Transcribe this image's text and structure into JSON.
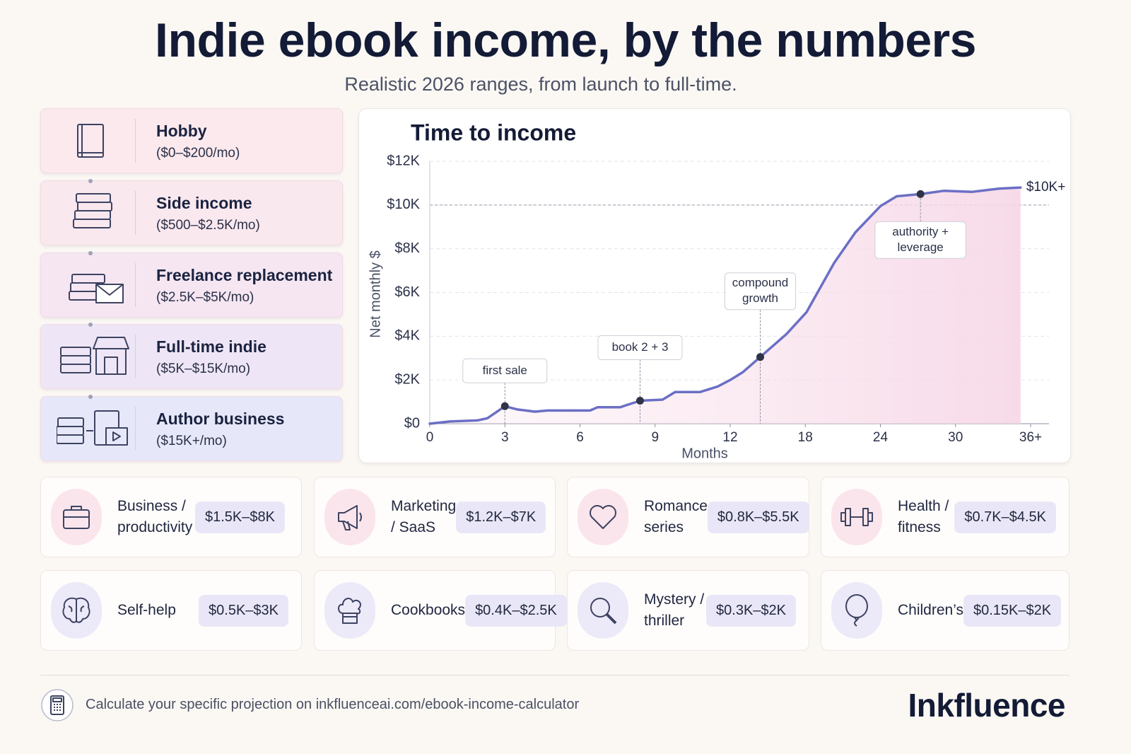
{
  "header": {
    "title": "Indie ebook income, by the numbers",
    "subtitle": "Realistic 2026 ranges, from launch to full-time."
  },
  "tiers": [
    {
      "name": "Hobby",
      "range": "($0–$200/mo)"
    },
    {
      "name": "Side income",
      "range": "($500–$2.5K/mo)"
    },
    {
      "name": "Freelance replacement",
      "range": "($2.5K–$5K/mo)"
    },
    {
      "name": "Full-time indie",
      "range": "($5K–$15K/mo)"
    },
    {
      "name": "Author business",
      "range": "($15K+/mo)"
    }
  ],
  "chart_data": {
    "type": "line",
    "title": "Time to income",
    "x_label": "Months",
    "y_label": "Net monthly $",
    "color": "#6b6fc4",
    "x": [
      0,
      0.8,
      1.9,
      2.3,
      3,
      3.5,
      4.2,
      4.7,
      6.4,
      6.7,
      7.6,
      8.4,
      9.3,
      9.8,
      10.8,
      11.5,
      12,
      13,
      14.4,
      16.5,
      18.1,
      20.3,
      22,
      24,
      25.3,
      27.2,
      29.1,
      31.3,
      33.5,
      35.2
    ],
    "values": [
      0,
      100,
      150,
      250,
      800,
      650,
      550,
      600,
      600,
      750,
      750,
      1050,
      1100,
      1450,
      1450,
      1700,
      2000,
      2350,
      3050,
      4100,
      5100,
      7350,
      8750,
      9950,
      10400,
      10500,
      10650,
      10600,
      10750,
      10800
    ],
    "xlim": [
      0,
      36
    ],
    "xticks": [
      0,
      3,
      6,
      9,
      12,
      18,
      24,
      30,
      {
        "value": 36,
        "label": "36+"
      }
    ],
    "ylim": [
      0,
      12000
    ],
    "yticks": [
      {
        "value": 0,
        "label": "$0"
      },
      {
        "value": 2000,
        "label": "$2K"
      },
      {
        "value": 4000,
        "label": "$4K"
      },
      {
        "value": 6000,
        "label": "$6K"
      },
      {
        "value": 8000,
        "label": "$8K"
      },
      {
        "value": 10000,
        "label": "$10K"
      },
      {
        "value": 12000,
        "label": "$12K"
      }
    ],
    "grid": true,
    "reference_line": 10000,
    "end_label": "$10K+",
    "annotations": [
      {
        "x": 3,
        "y": 800,
        "text": [
          "first sale"
        ]
      },
      {
        "x": 8.4,
        "y": 1050,
        "text": [
          "book 2 + 3"
        ]
      },
      {
        "x": 14.4,
        "y": 3050,
        "text": [
          "compound",
          "growth"
        ]
      },
      {
        "x": 27.2,
        "y": 10500,
        "text": [
          "authority +",
          "leverage"
        ]
      }
    ]
  },
  "niches": [
    {
      "name": "Business / productivity",
      "range": "$1.5K–$8K"
    },
    {
      "name": "Marketing / SaaS",
      "range": "$1.2K–$7K"
    },
    {
      "name": "Romance series",
      "range": "$0.8K–$5.5K"
    },
    {
      "name": "Health / fitness",
      "range": "$0.7K–$4.5K"
    },
    {
      "name": "Self-help",
      "range": "$0.5K–$3K"
    },
    {
      "name": "Cookbooks",
      "range": "$0.4K–$2.5K"
    },
    {
      "name": "Mystery / thriller",
      "range": "$0.3K–$2K"
    },
    {
      "name": "Children’s",
      "range": "$0.15K–$2K"
    }
  ],
  "footer": {
    "text": "Calculate your specific projection on inkfluenceai.com/ebook-income-calculator",
    "brand": "Inkfluence"
  }
}
